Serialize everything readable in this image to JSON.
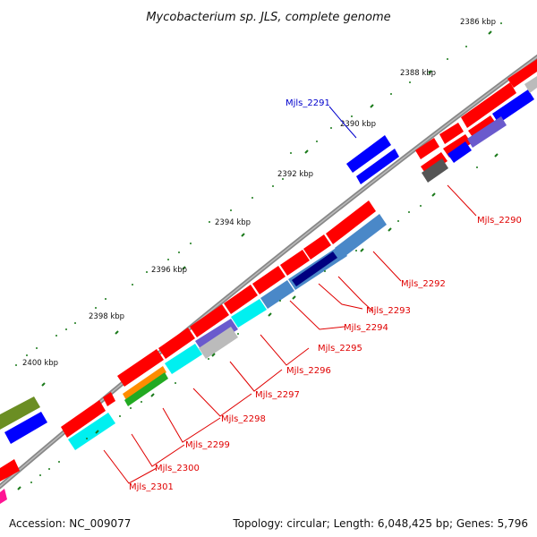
{
  "title": "Mycobacterium sp. JLS, complete genome",
  "footer": {
    "accession": "Accession: NC_009077",
    "info": "Topology: circular; Length: 6,048,425 bp; Genes: 5,796"
  },
  "colors": {
    "red": "#ff0000",
    "blue": "#0000ff",
    "cyan": "#00f0f0",
    "steelblue": "#4a88c8",
    "navy": "#000080",
    "slateblue": "#6a5acd",
    "olive": "#6b8e23",
    "green": "#22aa22",
    "orange": "#ff8c00",
    "gray": "#555555",
    "lightgray": "#bbbbbb",
    "pink": "#ff1493",
    "backbone": "#888888",
    "tick": "#1a7a1a",
    "label_red": "#e00000",
    "label_blue": "#0000cc"
  },
  "ticks": [
    {
      "label": "2386 kbp"
    },
    {
      "label": "2388 kbp"
    },
    {
      "label": "2390 kbp"
    },
    {
      "label": "2392 kbp"
    },
    {
      "label": "2394 kbp"
    },
    {
      "label": "2396 kbp"
    },
    {
      "label": "2398 kbp"
    },
    {
      "label": "2400 kbp"
    }
  ],
  "gene_labels": [
    {
      "id": "Mjls_2291",
      "color": "blue"
    },
    {
      "id": "Mjls_2290",
      "color": "red"
    },
    {
      "id": "Mjls_2292",
      "color": "red"
    },
    {
      "id": "Mjls_2293",
      "color": "red"
    },
    {
      "id": "Mjls_2294",
      "color": "red"
    },
    {
      "id": "Mjls_2295",
      "color": "red"
    },
    {
      "id": "Mjls_2296",
      "color": "red"
    },
    {
      "id": "Mjls_2297",
      "color": "red"
    },
    {
      "id": "Mjls_2298",
      "color": "red"
    },
    {
      "id": "Mjls_2299",
      "color": "red"
    },
    {
      "id": "Mjls_2300",
      "color": "red"
    },
    {
      "id": "Mjls_2301",
      "color": "red"
    }
  ]
}
